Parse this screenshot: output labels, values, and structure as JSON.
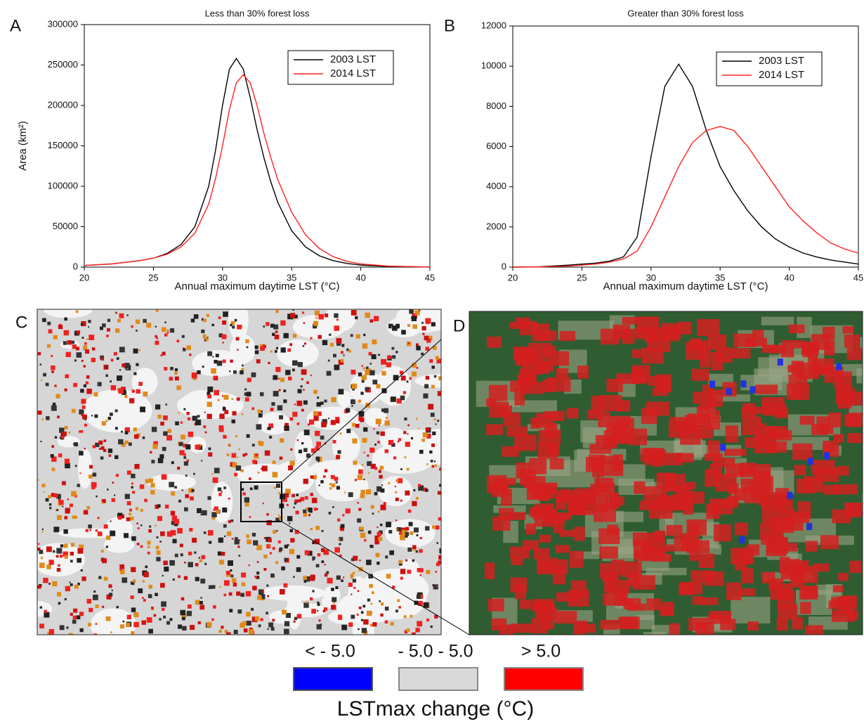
{
  "chart_data": [
    {
      "type": "line",
      "panel_label": "A",
      "title": "Less than 30% forest loss",
      "xlabel": "Annual maximum daytime LST (°C)",
      "ylabel": "Area (km²)",
      "x": [
        20,
        22,
        24,
        25,
        26,
        27,
        28,
        29,
        29.5,
        30,
        30.5,
        31,
        31.5,
        32,
        32.5,
        33,
        33.5,
        34,
        35,
        36,
        37,
        38,
        39,
        40,
        42,
        45
      ],
      "series": [
        {
          "name": "2003 LST",
          "color": "#000000",
          "values": [
            2000,
            4000,
            8000,
            11000,
            17000,
            28000,
            50000,
            100000,
            145000,
            200000,
            245000,
            258000,
            245000,
            210000,
            170000,
            135000,
            105000,
            80000,
            45000,
            25000,
            14000,
            8000,
            4500,
            2500,
            800,
            100
          ]
        },
        {
          "name": "2014 LST",
          "color": "#ff2020",
          "values": [
            2000,
            4000,
            8000,
            11000,
            16000,
            25000,
            42000,
            78000,
            110000,
            150000,
            195000,
            228000,
            238000,
            228000,
            200000,
            165000,
            135000,
            108000,
            68000,
            40000,
            23000,
            13000,
            7000,
            4000,
            1200,
            150
          ]
        }
      ],
      "xlim": [
        20,
        45
      ],
      "ylim": [
        0,
        300000
      ],
      "xticks": [
        20,
        25,
        30,
        35,
        40,
        45
      ],
      "yticks": [
        0,
        50000,
        100000,
        150000,
        200000,
        250000,
        300000
      ],
      "legend": "upper right"
    },
    {
      "type": "line",
      "panel_label": "B",
      "title": "Greater than 30% forest loss",
      "xlabel": "Annual maximum daytime LST (°C)",
      "x": [
        20,
        22,
        24,
        26,
        27,
        28,
        29,
        30,
        31,
        32,
        33,
        34,
        35,
        36,
        37,
        38,
        39,
        40,
        41,
        42,
        43,
        44,
        45
      ],
      "series": [
        {
          "name": "2003 LST",
          "color": "#000000",
          "values": [
            0,
            20,
            100,
            200,
            300,
            500,
            1500,
            5500,
            9000,
            10100,
            9000,
            6800,
            5000,
            3800,
            2800,
            2000,
            1400,
            1000,
            700,
            500,
            350,
            250,
            150
          ]
        },
        {
          "name": "2014 LST",
          "color": "#ff2020",
          "values": [
            0,
            10,
            50,
            150,
            250,
            400,
            800,
            2000,
            3500,
            5000,
            6200,
            6800,
            7000,
            6800,
            6000,
            5000,
            4000,
            3000,
            2300,
            1700,
            1200,
            900,
            700
          ]
        }
      ],
      "xlim": [
        20,
        45
      ],
      "ylim": [
        0,
        12000
      ],
      "xticks": [
        20,
        25,
        30,
        35,
        40,
        45
      ],
      "yticks": [
        0,
        2000,
        4000,
        6000,
        8000,
        10000,
        12000
      ],
      "legend": "upper right"
    }
  ],
  "maps": [
    {
      "panel_label": "C"
    },
    {
      "panel_label": "D"
    }
  ],
  "legend": {
    "title": "LSTmax change (°C)",
    "items": [
      {
        "label": "< - 5.0",
        "color": "#0000ff"
      },
      {
        "label": "- 5.0 - 5.0",
        "color": "#d9d9d9"
      },
      {
        "label": "> 5.0",
        "color": "#ff0000"
      }
    ]
  }
}
